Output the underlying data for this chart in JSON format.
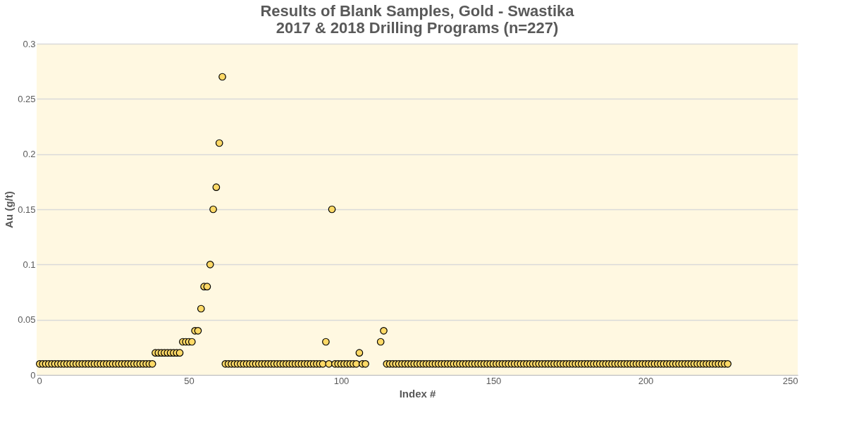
{
  "chart_data": {
    "type": "scatter",
    "title": "Results of Blank Samples, Gold - Swastika\n2017 & 2018 Drilling Programs (n=227)",
    "xlabel": "Index #",
    "ylabel": "Au (g/t)",
    "x": [
      1,
      2,
      3,
      4,
      5,
      6,
      7,
      8,
      9,
      10,
      11,
      12,
      13,
      14,
      15,
      16,
      17,
      18,
      19,
      20,
      21,
      22,
      23,
      24,
      25,
      26,
      27,
      28,
      29,
      30,
      31,
      32,
      33,
      34,
      35,
      36,
      37,
      38,
      39,
      40,
      41,
      42,
      43,
      44,
      45,
      46,
      47,
      48,
      49,
      50,
      51,
      52,
      53,
      54,
      55,
      56,
      57,
      58,
      59,
      60,
      61,
      62,
      63,
      64,
      65,
      66,
      67,
      68,
      69,
      70,
      71,
      72,
      73,
      74,
      75,
      76,
      77,
      78,
      79,
      80,
      81,
      82,
      83,
      84,
      85,
      86,
      87,
      88,
      89,
      90,
      91,
      92,
      93,
      94,
      95,
      96,
      97,
      98,
      99,
      100,
      101,
      102,
      103,
      104,
      105,
      106,
      107,
      108,
      109,
      110,
      111,
      112,
      113,
      114,
      115,
      116,
      117,
      118,
      119,
      120,
      121,
      122,
      123,
      124,
      125,
      126,
      127,
      128,
      129,
      130,
      131,
      132,
      133,
      134,
      135,
      136,
      137,
      138,
      139,
      140,
      141,
      142,
      143,
      144,
      145,
      146,
      147,
      148,
      149,
      150,
      151,
      152,
      153,
      154,
      155,
      156,
      157,
      158,
      159,
      160,
      161,
      162,
      163,
      164,
      165,
      166,
      167,
      168,
      169,
      170,
      171,
      172,
      173,
      174,
      175,
      176,
      177,
      178,
      179,
      180,
      181,
      182,
      183,
      184,
      185,
      186,
      187,
      188,
      189,
      190,
      191,
      192,
      193,
      194,
      195,
      196,
      197,
      198,
      199,
      200,
      201,
      202,
      203,
      204,
      205,
      206,
      207,
      208,
      209,
      210,
      211,
      212,
      213,
      214,
      215,
      216,
      217,
      218,
      219,
      220,
      221,
      222,
      223,
      224,
      225,
      226,
      227
    ],
    "series": [
      {
        "color": "#ffd966",
        "values": [
          0.01,
          0.01,
          0.01,
          0.01,
          0.01,
          0.01,
          0.01,
          0.01,
          0.01,
          0.01,
          0.01,
          0.01,
          0.01,
          0.01,
          0.01,
          0.01,
          0.01,
          0.01,
          0.01,
          0.01,
          0.01,
          0.01,
          0.01,
          0.01,
          0.01,
          0.01,
          0.01,
          0.01,
          0.01,
          0.01,
          0.01,
          0.01,
          0.01,
          0.01,
          0.01,
          0.01,
          0.01,
          0.01,
          0.02,
          0.02,
          0.02,
          0.02,
          0.02,
          0.02,
          0.02,
          0.02,
          0.02,
          0.03,
          0.03,
          0.03,
          0.03,
          0.04,
          0.04,
          0.06,
          0.08,
          0.08,
          0.1,
          0.15,
          0.17,
          0.21,
          0.27,
          0.01,
          0.01,
          0.01,
          0.01,
          0.01,
          0.01,
          0.01,
          0.01,
          0.01,
          0.01,
          0.01,
          0.01,
          0.01,
          0.01,
          0.01,
          0.01,
          0.01,
          0.01,
          0.01,
          0.01,
          0.01,
          0.01,
          0.01,
          0.01,
          0.01,
          0.01,
          0.01,
          0.01,
          0.01,
          0.01,
          0.01,
          0.01,
          0.01,
          0.03,
          0.01,
          0.15,
          0.01,
          0.01,
          0.01,
          0.01,
          0.01,
          0.01,
          0.01,
          0.01,
          0.02,
          0.01,
          0.01,
          null,
          null,
          null,
          null,
          0.03,
          0.04,
          0.01,
          0.01,
          0.01,
          0.01,
          0.01,
          0.01,
          0.01,
          0.01,
          0.01,
          0.01,
          0.01,
          0.01,
          0.01,
          0.01,
          0.01,
          0.01,
          0.01,
          0.01,
          0.01,
          0.01,
          0.01,
          0.01,
          0.01,
          0.01,
          0.01,
          0.01,
          0.01,
          0.01,
          0.01,
          0.01,
          0.01,
          0.01,
          0.01,
          0.01,
          0.01,
          0.01,
          0.01,
          0.01,
          0.01,
          0.01,
          0.01,
          0.01,
          0.01,
          0.01,
          0.01,
          0.01,
          0.01,
          0.01,
          0.01,
          0.01,
          0.01,
          0.01,
          0.01,
          0.01,
          0.01,
          0.01,
          0.01,
          0.01,
          0.01,
          0.01,
          0.01,
          0.01,
          0.01,
          0.01,
          0.01,
          0.01,
          0.01,
          0.01,
          0.01,
          0.01,
          0.01,
          0.01,
          0.01,
          0.01,
          0.01,
          0.01,
          0.01,
          0.01,
          0.01,
          0.01,
          0.01,
          0.01,
          0.01,
          0.01,
          0.01,
          0.01,
          0.01,
          0.01,
          0.01,
          0.01,
          0.01,
          0.01,
          0.01,
          0.01,
          0.01,
          0.01,
          0.01,
          0.01,
          0.01,
          0.01,
          0.01,
          0.01,
          0.01,
          0.01,
          0.01,
          0.01,
          0.01,
          0.01,
          0.01,
          0.01,
          0.01,
          0.01,
          0.01
        ]
      }
    ],
    "xlim": [
      0,
      250
    ],
    "xticks": [
      0,
      50,
      100,
      150,
      200,
      250
    ],
    "ylim": [
      0,
      0.3
    ],
    "yticks": [
      0,
      0.05,
      0.1,
      0.15,
      0.2,
      0.25,
      0.3
    ],
    "grid": "y",
    "marker": "circle"
  }
}
